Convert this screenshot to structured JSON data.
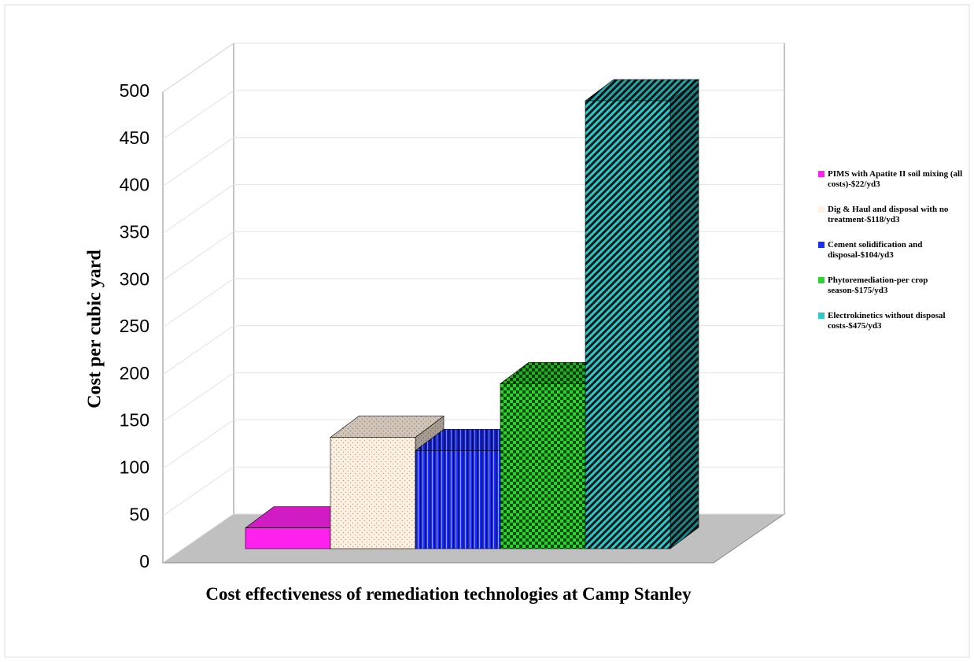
{
  "chart_data": {
    "type": "bar3d",
    "title": "Cost effectiveness of remediation technologies at Camp Stanley",
    "y_label": "Cost per cubic yard",
    "categories": [
      null
    ],
    "series": [
      {
        "name": "PIMS with Apatite II soil mixing (all costs)-$22/yd3",
        "color": "#ff22ee",
        "values": [
          22
        ]
      },
      {
        "name": "Dig & Haul and disposal with no treatment-$118/yd3",
        "color": "#fdf1e3",
        "values": [
          118
        ]
      },
      {
        "name": "Cement solidification and disposal-$104/yd3",
        "color": "#1a2cf5",
        "values": [
          104
        ]
      },
      {
        "name": "Phytoremediation-per crop season-$175/yd3",
        "color": "#2fd22f",
        "values": [
          175
        ]
      },
      {
        "name": "Electrokinetics without disposal costs-$475/yd3",
        "color": "#2ec8c8",
        "values": [
          475
        ]
      }
    ],
    "ylim": [
      0,
      500
    ],
    "yticks": [
      0,
      50,
      100,
      150,
      200,
      250,
      300,
      350,
      400,
      450,
      500
    ],
    "grid": true
  }
}
